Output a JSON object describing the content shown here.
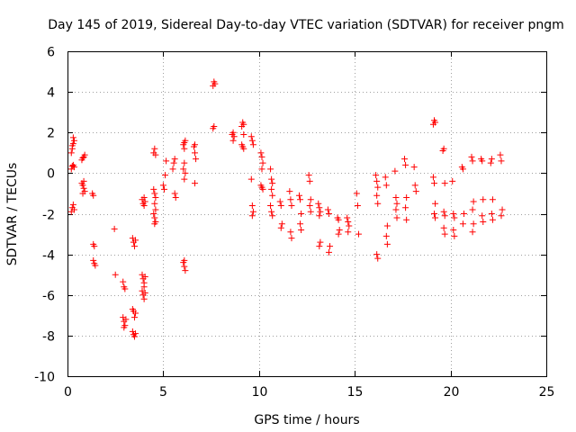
{
  "chart_data": {
    "type": "scatter",
    "title": "Day 145 of 2019, Sidereal Day-to-day VTEC variation (SDTVAR) for receiver pngm",
    "xlabel": "GPS time / hours",
    "ylabel": "SDTVAR / TECUs",
    "xlim": [
      0,
      25
    ],
    "ylim": [
      -10,
      6
    ],
    "xticks": [
      0,
      5,
      10,
      15,
      20,
      25
    ],
    "xtick_labels": [
      "0",
      "5",
      "10",
      "15",
      "20",
      "25"
    ],
    "yticks": [
      -10,
      -8,
      -6,
      -4,
      -2,
      0,
      2,
      4,
      6
    ],
    "ytick_labels": [
      "-10",
      "-8",
      "-6",
      "-4",
      "-2",
      "0",
      "2",
      "4",
      "6"
    ],
    "grid": true,
    "marker": "+",
    "series": [
      {
        "name": "SDTVAR",
        "color": "#ff0000",
        "points": [
          [
            0.2,
            -1.9
          ],
          [
            0.25,
            -1.7
          ],
          [
            0.3,
            -1.55
          ],
          [
            0.35,
            -1.8
          ],
          [
            0.2,
            0.2
          ],
          [
            0.25,
            0.35
          ],
          [
            0.3,
            0.4
          ],
          [
            0.35,
            0.3
          ],
          [
            0.2,
            1.0
          ],
          [
            0.25,
            1.2
          ],
          [
            0.3,
            1.45
          ],
          [
            0.35,
            1.6
          ],
          [
            0.3,
            1.75
          ],
          [
            0.25,
            1.35
          ],
          [
            0.75,
            0.65
          ],
          [
            0.8,
            0.75
          ],
          [
            0.85,
            0.8
          ],
          [
            0.9,
            0.9
          ],
          [
            0.75,
            -0.5
          ],
          [
            0.8,
            -0.6
          ],
          [
            0.85,
            -0.75
          ],
          [
            0.9,
            -0.9
          ],
          [
            0.8,
            -1.0
          ],
          [
            0.85,
            -0.4
          ],
          [
            1.3,
            -1.0
          ],
          [
            1.35,
            -1.1
          ],
          [
            1.35,
            -3.5
          ],
          [
            1.4,
            -3.6
          ],
          [
            1.35,
            -4.3
          ],
          [
            1.4,
            -4.45
          ],
          [
            1.45,
            -4.55
          ],
          [
            2.45,
            -2.75
          ],
          [
            2.5,
            -5.0
          ],
          [
            2.9,
            -5.35
          ],
          [
            2.95,
            -5.6
          ],
          [
            3.0,
            -5.7
          ],
          [
            2.9,
            -7.1
          ],
          [
            2.95,
            -7.3
          ],
          [
            3.0,
            -7.5
          ],
          [
            2.95,
            -7.6
          ],
          [
            3.05,
            -7.2
          ],
          [
            3.4,
            -3.2
          ],
          [
            3.45,
            -3.4
          ],
          [
            3.5,
            -3.6
          ],
          [
            3.55,
            -3.3
          ],
          [
            3.4,
            -6.7
          ],
          [
            3.45,
            -6.8
          ],
          [
            3.5,
            -7.1
          ],
          [
            3.55,
            -6.9
          ],
          [
            3.4,
            -7.8
          ],
          [
            3.45,
            -7.95
          ],
          [
            3.5,
            -8.05
          ],
          [
            3.55,
            -7.9
          ],
          [
            3.9,
            -1.3
          ],
          [
            3.95,
            -1.5
          ],
          [
            4.0,
            -1.6
          ],
          [
            4.05,
            -1.4
          ],
          [
            4.0,
            -1.2
          ],
          [
            3.9,
            -5.0
          ],
          [
            3.95,
            -5.2
          ],
          [
            4.0,
            -5.4
          ],
          [
            4.05,
            -5.1
          ],
          [
            3.9,
            -5.8
          ],
          [
            3.95,
            -6.0
          ],
          [
            4.0,
            -6.2
          ],
          [
            4.05,
            -5.9
          ],
          [
            4.0,
            -5.6
          ],
          [
            4.5,
            1.0
          ],
          [
            4.55,
            1.2
          ],
          [
            4.6,
            0.9
          ],
          [
            4.5,
            -0.8
          ],
          [
            4.55,
            -1.0
          ],
          [
            4.6,
            -1.2
          ],
          [
            4.55,
            -1.5
          ],
          [
            4.5,
            -2.0
          ],
          [
            4.55,
            -2.2
          ],
          [
            4.6,
            -2.4
          ],
          [
            4.55,
            -2.5
          ],
          [
            4.6,
            -1.8
          ],
          [
            5.0,
            -0.6
          ],
          [
            5.05,
            -0.8
          ],
          [
            5.1,
            -0.1
          ],
          [
            5.15,
            0.6
          ],
          [
            5.5,
            0.2
          ],
          [
            5.55,
            0.5
          ],
          [
            5.6,
            0.7
          ],
          [
            5.6,
            -1.0
          ],
          [
            5.65,
            -1.2
          ],
          [
            6.05,
            1.4
          ],
          [
            6.1,
            1.5
          ],
          [
            6.15,
            1.6
          ],
          [
            6.1,
            1.2
          ],
          [
            6.05,
            0.2
          ],
          [
            6.1,
            0.5
          ],
          [
            6.15,
            0.0
          ],
          [
            6.1,
            -0.3
          ],
          [
            6.05,
            -4.4
          ],
          [
            6.1,
            -4.6
          ],
          [
            6.15,
            -4.8
          ],
          [
            6.1,
            -4.3
          ],
          [
            6.6,
            1.3
          ],
          [
            6.65,
            1.4
          ],
          [
            6.65,
            1.0
          ],
          [
            6.7,
            0.7
          ],
          [
            6.65,
            -0.5
          ],
          [
            7.6,
            4.3
          ],
          [
            7.65,
            4.5
          ],
          [
            7.7,
            4.4
          ],
          [
            7.6,
            2.2
          ],
          [
            7.65,
            2.3
          ],
          [
            8.6,
            1.9
          ],
          [
            8.65,
            2.0
          ],
          [
            8.7,
            1.8
          ],
          [
            8.65,
            1.6
          ],
          [
            9.1,
            2.3
          ],
          [
            9.15,
            2.5
          ],
          [
            9.2,
            2.4
          ],
          [
            9.2,
            1.9
          ],
          [
            9.1,
            1.4
          ],
          [
            9.15,
            1.3
          ],
          [
            9.2,
            1.2
          ],
          [
            9.6,
            1.8
          ],
          [
            9.65,
            1.6
          ],
          [
            9.7,
            1.4
          ],
          [
            9.6,
            -0.3
          ],
          [
            9.65,
            -1.6
          ],
          [
            9.7,
            -1.9
          ],
          [
            9.65,
            -2.1
          ],
          [
            10.1,
            1.0
          ],
          [
            10.15,
            0.8
          ],
          [
            10.2,
            0.5
          ],
          [
            10.15,
            0.2
          ],
          [
            10.1,
            -0.6
          ],
          [
            10.15,
            -0.7
          ],
          [
            10.2,
            -0.8
          ],
          [
            10.6,
            0.2
          ],
          [
            10.65,
            -0.3
          ],
          [
            10.7,
            -0.5
          ],
          [
            10.65,
            -0.8
          ],
          [
            10.7,
            -1.1
          ],
          [
            10.6,
            -1.6
          ],
          [
            10.65,
            -1.9
          ],
          [
            10.7,
            -2.1
          ],
          [
            11.1,
            -1.4
          ],
          [
            11.15,
            -1.6
          ],
          [
            11.2,
            -2.5
          ],
          [
            11.15,
            -2.7
          ],
          [
            11.6,
            -0.9
          ],
          [
            11.65,
            -1.3
          ],
          [
            11.7,
            -1.6
          ],
          [
            11.65,
            -2.9
          ],
          [
            11.7,
            -3.2
          ],
          [
            12.1,
            -1.1
          ],
          [
            12.15,
            -1.3
          ],
          [
            12.2,
            -2.0
          ],
          [
            12.15,
            -2.5
          ],
          [
            12.2,
            -2.8
          ],
          [
            12.6,
            -0.1
          ],
          [
            12.65,
            -0.4
          ],
          [
            12.7,
            -1.3
          ],
          [
            12.65,
            -1.6
          ],
          [
            12.7,
            -1.9
          ],
          [
            13.1,
            -1.5
          ],
          [
            13.15,
            -1.7
          ],
          [
            13.2,
            -1.9
          ],
          [
            13.15,
            -2.1
          ],
          [
            13.2,
            -3.4
          ],
          [
            13.15,
            -3.6
          ],
          [
            13.6,
            -1.8
          ],
          [
            13.65,
            -2.0
          ],
          [
            13.7,
            -3.6
          ],
          [
            13.65,
            -3.9
          ],
          [
            14.1,
            -2.2
          ],
          [
            14.15,
            -2.3
          ],
          [
            14.2,
            -2.8
          ],
          [
            14.15,
            -3.0
          ],
          [
            14.6,
            -2.2
          ],
          [
            14.65,
            -2.4
          ],
          [
            14.7,
            -2.6
          ],
          [
            14.65,
            -2.9
          ],
          [
            15.1,
            -1.0
          ],
          [
            15.15,
            -1.6
          ],
          [
            15.2,
            -3.0
          ],
          [
            16.1,
            -0.1
          ],
          [
            16.15,
            -0.4
          ],
          [
            16.2,
            -0.7
          ],
          [
            16.15,
            -1.1
          ],
          [
            16.2,
            -1.5
          ],
          [
            16.15,
            -4.0
          ],
          [
            16.2,
            -4.2
          ],
          [
            16.6,
            -0.2
          ],
          [
            16.65,
            -0.6
          ],
          [
            16.7,
            -2.6
          ],
          [
            16.65,
            -3.1
          ],
          [
            16.7,
            -3.5
          ],
          [
            17.1,
            0.1
          ],
          [
            17.15,
            -1.2
          ],
          [
            17.2,
            -1.5
          ],
          [
            17.15,
            -1.8
          ],
          [
            17.2,
            -2.2
          ],
          [
            17.6,
            0.7
          ],
          [
            17.65,
            0.4
          ],
          [
            17.7,
            -1.2
          ],
          [
            17.65,
            -1.7
          ],
          [
            17.7,
            -2.3
          ],
          [
            18.1,
            0.3
          ],
          [
            18.15,
            -0.6
          ],
          [
            18.2,
            -0.9
          ],
          [
            19.1,
            2.4
          ],
          [
            19.15,
            2.6
          ],
          [
            19.2,
            2.5
          ],
          [
            19.1,
            -0.2
          ],
          [
            19.15,
            -0.5
          ],
          [
            19.2,
            -1.5
          ],
          [
            19.15,
            -2.0
          ],
          [
            19.2,
            -2.2
          ],
          [
            19.6,
            1.1
          ],
          [
            19.65,
            1.2
          ],
          [
            19.7,
            -0.5
          ],
          [
            19.65,
            -1.9
          ],
          [
            19.7,
            -2.1
          ],
          [
            19.65,
            -2.7
          ],
          [
            19.7,
            -3.0
          ],
          [
            20.1,
            -0.4
          ],
          [
            20.15,
            -2.0
          ],
          [
            20.2,
            -2.2
          ],
          [
            20.15,
            -2.8
          ],
          [
            20.2,
            -3.1
          ],
          [
            20.6,
            0.3
          ],
          [
            20.65,
            0.2
          ],
          [
            20.7,
            -2.0
          ],
          [
            20.65,
            -2.5
          ],
          [
            21.1,
            0.8
          ],
          [
            21.15,
            0.6
          ],
          [
            21.2,
            -1.4
          ],
          [
            21.15,
            -1.8
          ],
          [
            21.2,
            -2.5
          ],
          [
            21.15,
            -2.9
          ],
          [
            21.6,
            0.7
          ],
          [
            21.65,
            0.6
          ],
          [
            21.7,
            -1.3
          ],
          [
            21.65,
            -2.1
          ],
          [
            21.7,
            -2.4
          ],
          [
            22.1,
            0.5
          ],
          [
            22.15,
            0.7
          ],
          [
            22.2,
            -1.3
          ],
          [
            22.15,
            -2.0
          ],
          [
            22.2,
            -2.3
          ],
          [
            22.6,
            0.9
          ],
          [
            22.65,
            0.6
          ],
          [
            22.7,
            -1.8
          ],
          [
            22.65,
            -2.1
          ]
        ]
      }
    ]
  }
}
